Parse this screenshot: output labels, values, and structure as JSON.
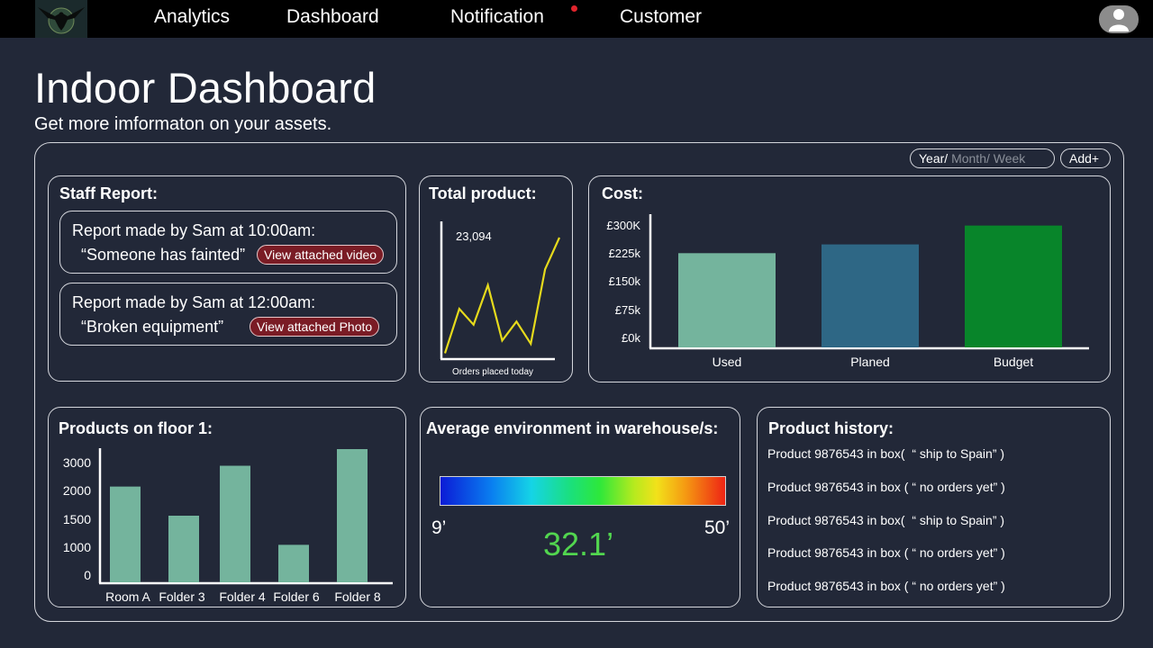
{
  "nav": {
    "items": [
      {
        "label": "Analytics"
      },
      {
        "label": "Dashboard"
      },
      {
        "label": "Notification"
      },
      {
        "label": "Customer"
      }
    ],
    "notification_dot_color": "#e0242c"
  },
  "page": {
    "title": "Indoor Dashboard",
    "subtitle": "Get more imformaton on your assets."
  },
  "filters": {
    "period_selected": "Year/",
    "period_others": " Month/ Week",
    "add_label": "Add+"
  },
  "staff_report": {
    "title": "Staff Report:",
    "reports": [
      {
        "header": "Report made by Sam at 10:00am:",
        "message": "“Someone has fainted”",
        "button": "View attached video"
      },
      {
        "header": "Report made by Sam at 12:00am:",
        "message": "“Broken equipment”",
        "button": "View attached Photo"
      }
    ]
  },
  "total_product": {
    "title": "Total product:",
    "value_label": "23,094",
    "caption": "Orders placed today",
    "line_color": "#e6da1c"
  },
  "cost": {
    "title": "Cost:"
  },
  "products_floor": {
    "title": "Products on floor 1:"
  },
  "environment": {
    "title": "Average environment in warehouse/s:",
    "min_label": "9’",
    "max_label": "50’",
    "current_label": "32.1’",
    "current_value": 32.1,
    "value_color": "#52d64f"
  },
  "product_history": {
    "title": "Product history:",
    "items": [
      "Product 9876543 in box(  “ ship to Spain” )",
      "Product 9876543 in box ( “ no orders yet” )",
      "Product 9876543 in box(  “ ship to Spain” )",
      "Product 9876543 in box ( “ no orders yet” )",
      "Product 9876543 in box ( “ no orders yet” )"
    ]
  },
  "chart_data": [
    {
      "type": "line",
      "title": "Total product:",
      "xlabel": "Orders placed today",
      "annotation": "23,094",
      "x": [
        1,
        2,
        3,
        4,
        5,
        6,
        7,
        8,
        9
      ],
      "values": [
        2,
        30,
        20,
        45,
        10,
        22,
        8,
        55,
        75
      ],
      "color": "#e6da1c"
    },
    {
      "type": "bar",
      "title": "Cost:",
      "categories": [
        "Used",
        "Planed",
        "Budget"
      ],
      "values": [
        215000,
        235000,
        278000
      ],
      "colors": [
        "#74b49d",
        "#2e6785",
        "#08852a"
      ],
      "yticks": [
        "£0k",
        "£75k",
        "£150k",
        "£225k",
        "£300K"
      ],
      "ylim": [
        0,
        300000
      ]
    },
    {
      "type": "bar",
      "title": "Products on floor 1:",
      "categories": [
        "Room A",
        "Folder 3",
        "Folder 4",
        "Folder 6",
        "Folder 8"
      ],
      "values": [
        2300,
        1600,
        2800,
        900,
        3200
      ],
      "color": "#74b49d",
      "yticks": [
        "0",
        "1000",
        "1500",
        "2000",
        "3000"
      ],
      "ylim": [
        0,
        3500
      ]
    }
  ]
}
